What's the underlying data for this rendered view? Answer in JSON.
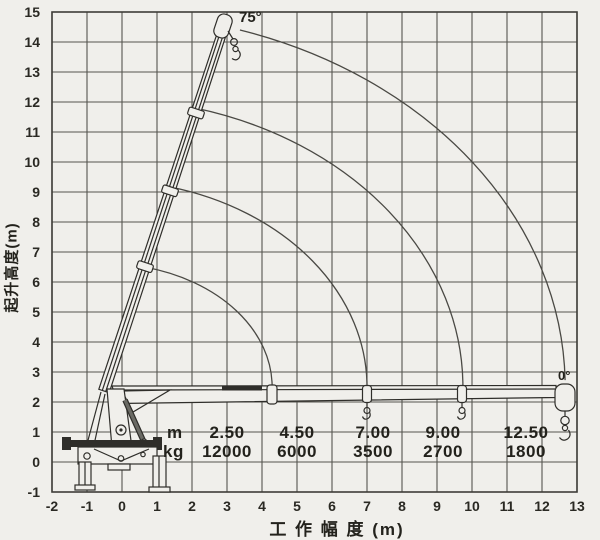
{
  "axes": {
    "y": {
      "title": "起升高度(m)",
      "ticks": [
        15,
        14,
        13,
        12,
        11,
        10,
        9,
        8,
        7,
        6,
        5,
        4,
        3,
        2,
        1,
        0,
        -1
      ]
    },
    "x": {
      "title": "工 作 幅 度 (m)",
      "ticks": [
        -2,
        -1,
        0,
        1,
        2,
        3,
        4,
        5,
        6,
        7,
        8,
        9,
        10,
        11,
        12,
        13
      ]
    }
  },
  "labels": {
    "max_angle": "75°",
    "min_angle": "0°"
  },
  "load_table": {
    "unit_radius": "m",
    "unit_capacity": "kg",
    "entries": [
      {
        "radius": "2.50",
        "capacity": "12000"
      },
      {
        "radius": "4.50",
        "capacity": "6000"
      },
      {
        "radius": "7.00",
        "capacity": "3500"
      },
      {
        "radius": "9.00",
        "capacity": "2700"
      },
      {
        "radius": "12.50",
        "capacity": "1800"
      }
    ]
  },
  "chart_data": {
    "type": "line",
    "title": "Truck-mounted crane working range / load chart",
    "xlabel": "工作幅度 (m)",
    "ylabel": "起升高度 (m)",
    "xlim": [
      -2,
      13
    ],
    "ylim": [
      -1,
      15
    ],
    "grid": true,
    "boom_pivot": {
      "x": -0.5,
      "y": 2.5
    },
    "boom_positions": [
      {
        "angle_deg": 75,
        "tip": {
          "x": 3.4,
          "y": 14.4
        }
      },
      {
        "angle_deg": 0,
        "tip": {
          "x": 12.6,
          "y": 2.4
        }
      }
    ],
    "range_arcs": [
      {
        "start": {
          "x": 0.64,
          "y": 6.5
        },
        "end": {
          "x": 4.29,
          "y": 2.5
        }
      },
      {
        "start": {
          "x": 1.37,
          "y": 9.17
        },
        "end": {
          "x": 7.0,
          "y": 2.45
        }
      },
      {
        "start": {
          "x": 2.09,
          "y": 11.8
        },
        "end": {
          "x": 9.74,
          "y": 2.42
        }
      },
      {
        "start": {
          "x": 3.37,
          "y": 14.4
        },
        "end": {
          "x": 12.66,
          "y": 2.73
        }
      }
    ],
    "load_points": [
      {
        "radius_m": 2.5,
        "capacity_kg": 12000
      },
      {
        "radius_m": 4.5,
        "capacity_kg": 6000
      },
      {
        "radius_m": 7.0,
        "capacity_kg": 3500
      },
      {
        "radius_m": 9.0,
        "capacity_kg": 2700
      },
      {
        "radius_m": 12.5,
        "capacity_kg": 1800
      }
    ]
  }
}
